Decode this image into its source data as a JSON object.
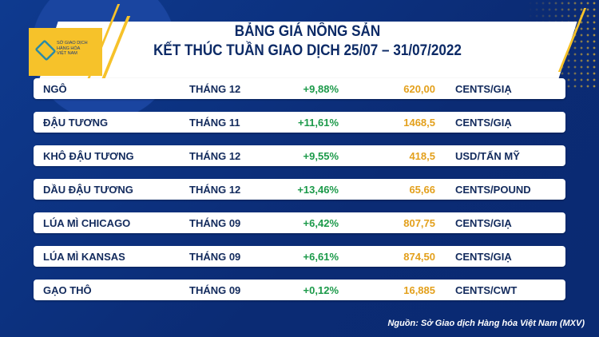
{
  "header": {
    "logo_text": [
      "SỞ GIAO DỊCH",
      "HÀNG HÓA",
      "VIỆT NAM"
    ],
    "title_line1": "BẢNG GIÁ NÔNG SẢN",
    "title_line2": "KẾT THÚC TUẦN GIAO DỊCH 25/07 – 31/07/2022"
  },
  "rows": [
    {
      "name": "NGÔ",
      "month": "THÁNG 12",
      "change": "+9,88%",
      "price": "620,00",
      "unit": "CENTS/GIẠ"
    },
    {
      "name": "ĐẬU TƯƠNG",
      "month": "THÁNG 11",
      "change": "+11,61%",
      "price": "1468,5",
      "unit": "CENTS/GIẠ"
    },
    {
      "name": "KHÔ ĐẬU TƯƠNG",
      "month": "THÁNG 12",
      "change": "+9,55%",
      "price": "418,5",
      "unit": "USD/TẤN MỸ"
    },
    {
      "name": "DẦU ĐẬU TƯƠNG",
      "month": "THÁNG 12",
      "change": "+13,46%",
      "price": "65,66",
      "unit": "CENTS/POUND"
    },
    {
      "name": "LÚA MÌ CHICAGO",
      "month": "THÁNG 09",
      "change": "+6,42%",
      "price": "807,75",
      "unit": "CENTS/GIẠ"
    },
    {
      "name": "LÚA MÌ KANSAS",
      "month": "THÁNG 09",
      "change": "+6,61%",
      "price": "874,50",
      "unit": "CENTS/GIẠ"
    },
    {
      "name": "GẠO THÔ",
      "month": "THÁNG 09",
      "change": "+0,12%",
      "price": "16,885",
      "unit": "CENTS/CWT"
    }
  ],
  "source": "Nguồn: Sở Giao dịch Hàng hóa Việt Nam (MXV)",
  "colors": {
    "background": "#0c2f7e",
    "accent": "#f6c22a",
    "positive": "#1c9a4a",
    "price": "#e3a01c",
    "text": "#122a5c"
  }
}
